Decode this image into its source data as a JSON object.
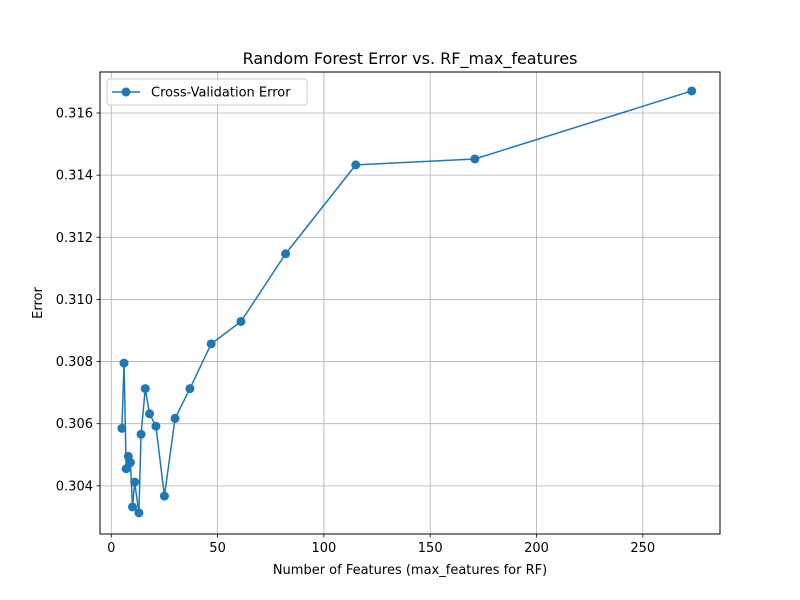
{
  "chart_data": {
    "type": "line",
    "title": "Random Forest Error vs. RF_max_features",
    "xlabel": "Number of Features (max_features for RF)",
    "ylabel": "Error",
    "xlim": [
      -5.3,
      286.3
    ],
    "ylim": [
      0.30245,
      0.31732
    ],
    "xticks": [
      0,
      50,
      100,
      150,
      200,
      250
    ],
    "yticks": [
      0.304,
      0.306,
      0.308,
      0.31,
      0.312,
      0.314,
      0.316
    ],
    "ytick_labels": [
      "0.304",
      "0.306",
      "0.308",
      "0.310",
      "0.312",
      "0.314",
      "0.316"
    ],
    "grid": true,
    "legend_position": "upper left",
    "color": "#1f77b4",
    "series": [
      {
        "name": "Cross-Validation Error",
        "x": [
          5,
          6,
          7,
          8,
          9,
          10,
          11,
          13,
          14,
          16,
          18,
          21,
          25,
          30,
          37,
          47,
          61,
          82,
          115,
          171,
          273
        ],
        "y": [
          0.30585,
          0.30795,
          0.30455,
          0.30495,
          0.30475,
          0.30332,
          0.30412,
          0.30313,
          0.30566,
          0.30713,
          0.30632,
          0.30592,
          0.30367,
          0.30617,
          0.30713,
          0.30857,
          0.30929,
          0.31147,
          0.31433,
          0.31452,
          0.31671
        ]
      }
    ]
  }
}
